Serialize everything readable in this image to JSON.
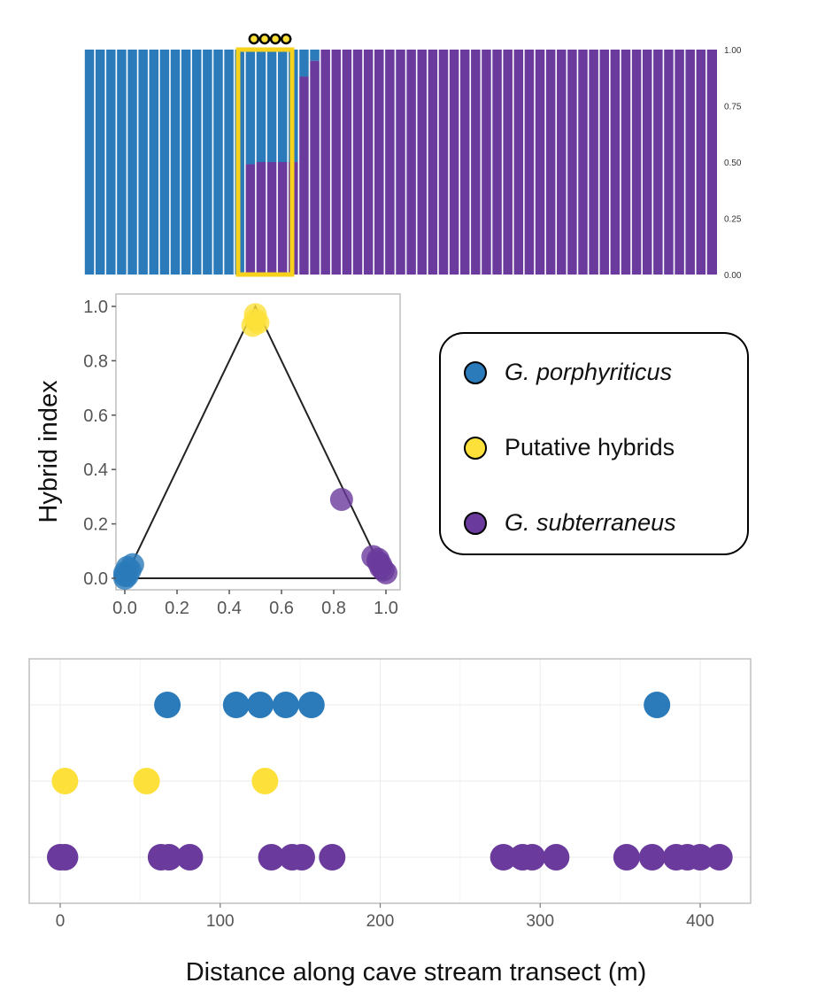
{
  "colors": {
    "porphyriticus": "#2b7bba",
    "hybrid": "#fde13a",
    "subterraneus": "#6a3b9c",
    "highlight": "#f7d21c"
  },
  "legend": {
    "items": [
      {
        "label": "G. porphyriticus",
        "italic": true,
        "color": "#2b7bba"
      },
      {
        "label": "Putative hybrids",
        "italic": false,
        "color": "#fde13a"
      },
      {
        "label": "G. subterraneus",
        "italic": true,
        "color": "#6a3b9c"
      }
    ]
  },
  "chart_data": [
    {
      "type": "bar",
      "title": "",
      "stacked": true,
      "n_individuals": 59,
      "description_series": [
        "G. porphyriticus ancestry",
        "G. subterraneus ancestry"
      ],
      "yticks": [
        "1.00",
        "0.75",
        "0.50",
        "0.25",
        "0.00"
      ],
      "ylim": [
        0,
        1
      ],
      "subterraneus_proportion": [
        0,
        0,
        0,
        0,
        0,
        0,
        0,
        0,
        0,
        0,
        0,
        0,
        0,
        0,
        0,
        0.49,
        0.5,
        0.5,
        0.5,
        0.5,
        0.88,
        0.95,
        1,
        1,
        1,
        1,
        1,
        1,
        1,
        1,
        1,
        1,
        1,
        1,
        1,
        1,
        1,
        1,
        1,
        1,
        1,
        1,
        1,
        1,
        1,
        1,
        1,
        1,
        1,
        1,
        1,
        1,
        1,
        1,
        1,
        1,
        1,
        1,
        1
      ],
      "highlight_range": [
        15,
        19
      ],
      "hybrid_markers": 4
    },
    {
      "type": "scatter",
      "title": "",
      "xlabel": "",
      "ylabel": "Hybrid index",
      "xlim": [
        0,
        1
      ],
      "ylim": [
        0,
        1
      ],
      "xticks": [
        "0.0",
        "0.2",
        "0.4",
        "0.6",
        "0.8",
        "1.0"
      ],
      "yticks": [
        "0.0",
        "0.2",
        "0.4",
        "0.6",
        "0.8",
        "1.0"
      ],
      "triangle": [
        [
          0,
          0
        ],
        [
          0.5,
          1
        ],
        [
          1,
          0
        ]
      ],
      "series": [
        {
          "name": "G. porphyriticus",
          "points": [
            [
              0.0,
              0.0
            ],
            [
              0.01,
              0.01
            ],
            [
              0.0,
              0.02
            ],
            [
              0.02,
              0.03
            ],
            [
              0.01,
              0.04
            ],
            [
              0.03,
              0.05
            ],
            [
              0.0,
              0.01
            ]
          ]
        },
        {
          "name": "Putative hybrids",
          "points": [
            [
              0.5,
              0.95
            ],
            [
              0.49,
              0.93
            ],
            [
              0.5,
              0.97
            ],
            [
              0.51,
              0.94
            ]
          ]
        },
        {
          "name": "G. subterraneus",
          "points": [
            [
              0.83,
              0.29
            ],
            [
              0.95,
              0.08
            ],
            [
              0.97,
              0.06
            ],
            [
              0.98,
              0.04
            ],
            [
              0.99,
              0.03
            ],
            [
              0.98,
              0.05
            ],
            [
              0.97,
              0.07
            ],
            [
              1.0,
              0.02
            ]
          ]
        }
      ]
    },
    {
      "type": "scatter",
      "title": "",
      "xlabel": "Distance along cave stream transect (m)",
      "ylabel": "",
      "xlim": [
        -20,
        430
      ],
      "xticks": [
        "0",
        "100",
        "200",
        "300",
        "400"
      ],
      "series": [
        {
          "name": "G. porphyriticus",
          "x": [
            67,
            110,
            125,
            141,
            157,
            373
          ]
        },
        {
          "name": "Putative hybrids",
          "x": [
            3,
            54,
            128
          ]
        },
        {
          "name": "G. subterraneus",
          "x": [
            0,
            3,
            63,
            68,
            81,
            132,
            145,
            151,
            170,
            277,
            289,
            295,
            310,
            354,
            370,
            385,
            392,
            400,
            412
          ]
        }
      ]
    }
  ]
}
